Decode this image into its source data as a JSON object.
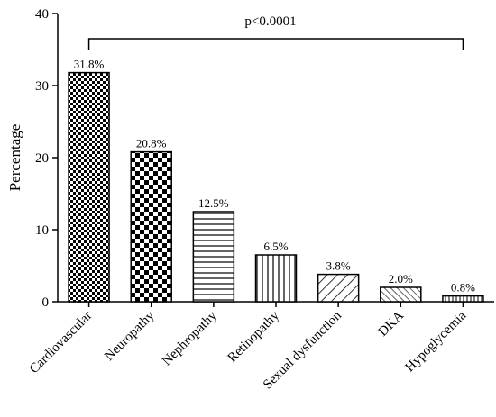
{
  "chart_data": {
    "type": "bar",
    "title": "",
    "xlabel": "",
    "ylabel": "Percentage",
    "ylim": [
      0,
      40
    ],
    "yticks": [
      0,
      10,
      20,
      30,
      40
    ],
    "categories": [
      "Cardiovascular",
      "Neuropathy",
      "Nephropathy",
      "Retinopathy",
      "Sexual dysfunction",
      "DKA",
      "Hypoglycemia"
    ],
    "values": [
      31.8,
      20.8,
      12.5,
      6.5,
      3.8,
      2.0,
      0.8
    ],
    "data_labels": [
      "31.8%",
      "20.8%",
      "12.5%",
      "6.5%",
      "3.8%",
      "2.0%",
      "0.8%"
    ],
    "patterns": [
      "fine-checker",
      "coarse-checker",
      "horizontal-lines",
      "vertical-lines",
      "diagonal-wide",
      "diagonal-narrow",
      "vertical-fine"
    ],
    "annotation": {
      "text": "p<0.0001",
      "from_category": "Cardiovascular",
      "to_category": "Hypoglycemia",
      "y": 36.5
    },
    "grid": false,
    "legend": "none"
  }
}
